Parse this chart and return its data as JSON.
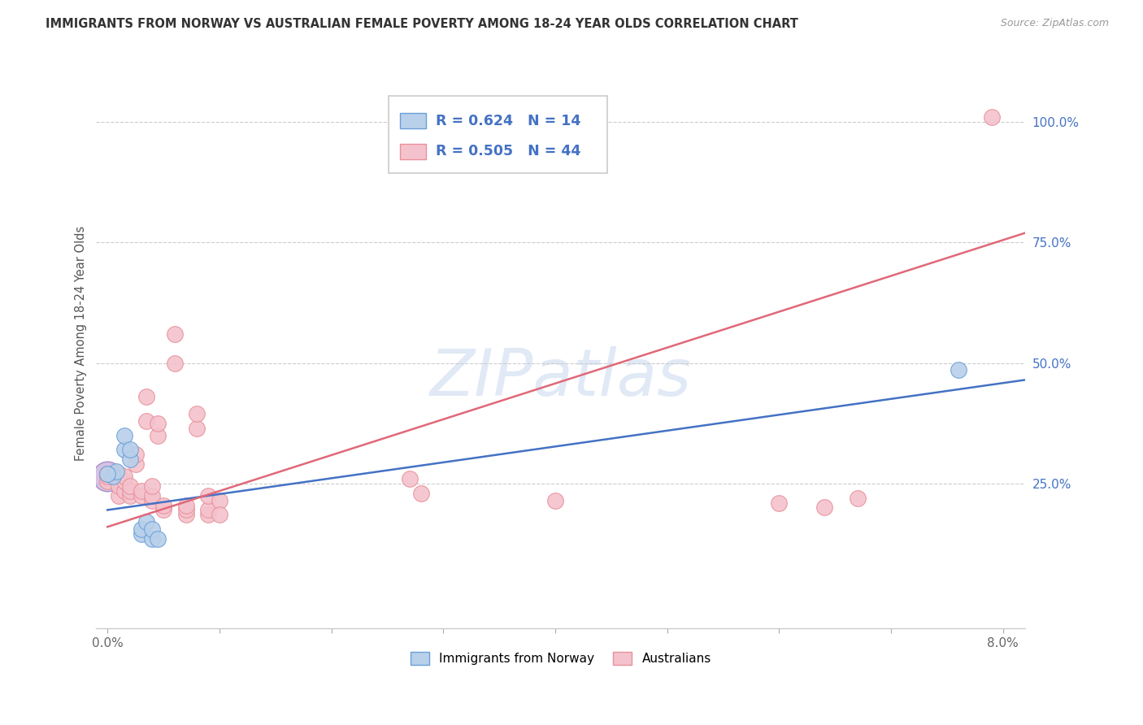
{
  "title": "IMMIGRANTS FROM NORWAY VS AUSTRALIAN FEMALE POVERTY AMONG 18-24 YEAR OLDS CORRELATION CHART",
  "source": "Source: ZipAtlas.com",
  "ylabel": "Female Poverty Among 18-24 Year Olds",
  "xlim": [
    -0.001,
    0.082
  ],
  "ylim": [
    -0.05,
    1.13
  ],
  "yticks": [
    0.25,
    0.5,
    0.75,
    1.0
  ],
  "ytick_labels": [
    "25.0%",
    "50.0%",
    "75.0%",
    "100.0%"
  ],
  "xticks": [
    0.0,
    0.01,
    0.02,
    0.03,
    0.04,
    0.05,
    0.06,
    0.07,
    0.08
  ],
  "xtick_labels": [
    "0.0%",
    "",
    "",
    "",
    "",
    "",
    "",
    "",
    "8.0%"
  ],
  "norway_R": 0.624,
  "norway_N": 14,
  "australian_R": 0.505,
  "australian_N": 44,
  "norway_color": "#b8d0ea",
  "norway_edge_color": "#6a9fd8",
  "norway_line_color": "#4472c4",
  "australian_color": "#f4c2cc",
  "australian_edge_color": "#e8909a",
  "australian_line_color": "#e06878",
  "legend_text_color": "#4472c4",
  "watermark": "ZIPatlas",
  "norway_points": [
    [
      0.0005,
      0.265
    ],
    [
      0.0008,
      0.275
    ],
    [
      0.0015,
      0.32
    ],
    [
      0.0015,
      0.35
    ],
    [
      0.002,
      0.3
    ],
    [
      0.002,
      0.32
    ],
    [
      0.003,
      0.145
    ],
    [
      0.003,
      0.155
    ],
    [
      0.0035,
      0.17
    ],
    [
      0.004,
      0.135
    ],
    [
      0.004,
      0.155
    ],
    [
      0.0045,
      0.135
    ],
    [
      0.076,
      0.485
    ],
    [
      0.0,
      0.27
    ]
  ],
  "australian_points": [
    [
      0.0,
      0.255
    ],
    [
      0.0,
      0.265
    ],
    [
      0.0,
      0.27
    ],
    [
      0.001,
      0.225
    ],
    [
      0.001,
      0.245
    ],
    [
      0.001,
      0.27
    ],
    [
      0.0015,
      0.235
    ],
    [
      0.0015,
      0.255
    ],
    [
      0.0015,
      0.265
    ],
    [
      0.002,
      0.225
    ],
    [
      0.002,
      0.235
    ],
    [
      0.002,
      0.245
    ],
    [
      0.0025,
      0.29
    ],
    [
      0.0025,
      0.31
    ],
    [
      0.003,
      0.225
    ],
    [
      0.003,
      0.235
    ],
    [
      0.0035,
      0.38
    ],
    [
      0.0035,
      0.43
    ],
    [
      0.004,
      0.215
    ],
    [
      0.004,
      0.225
    ],
    [
      0.004,
      0.245
    ],
    [
      0.0045,
      0.35
    ],
    [
      0.0045,
      0.375
    ],
    [
      0.005,
      0.195
    ],
    [
      0.005,
      0.205
    ],
    [
      0.006,
      0.5
    ],
    [
      0.006,
      0.56
    ],
    [
      0.007,
      0.185
    ],
    [
      0.007,
      0.195
    ],
    [
      0.007,
      0.205
    ],
    [
      0.008,
      0.365
    ],
    [
      0.008,
      0.395
    ],
    [
      0.009,
      0.185
    ],
    [
      0.009,
      0.195
    ],
    [
      0.009,
      0.225
    ],
    [
      0.01,
      0.215
    ],
    [
      0.01,
      0.185
    ],
    [
      0.027,
      0.26
    ],
    [
      0.028,
      0.23
    ],
    [
      0.04,
      0.215
    ],
    [
      0.06,
      0.21
    ],
    [
      0.064,
      0.2
    ],
    [
      0.067,
      0.22
    ],
    [
      0.079,
      1.01
    ]
  ],
  "norway_trend_x": [
    0.0,
    0.082
  ],
  "norway_trend_y": [
    0.195,
    0.465
  ],
  "australian_trend_x": [
    0.0,
    0.082
  ],
  "australian_trend_y": [
    0.16,
    0.77
  ]
}
